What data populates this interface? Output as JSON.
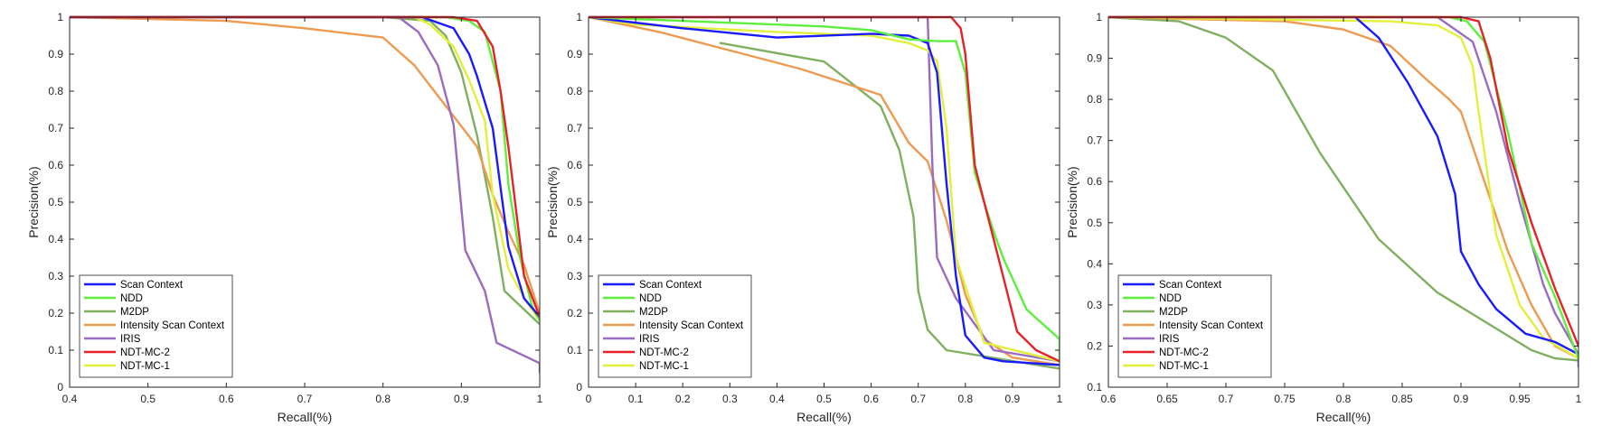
{
  "colors": {
    "Scan Context": "#1a1aff",
    "NDD": "#5cf03c",
    "M2DP": "#7fb060",
    "Intensity Scan Context": "#ee9a50",
    "IRIS": "#9b6bc2",
    "NDT-MC-2": "#e8202a",
    "NDT-MC-1": "#e2ef3c"
  },
  "chart_data": [
    {
      "type": "line",
      "xlabel": "Recall(%)",
      "ylabel": "Precision(%)",
      "xlim": [
        0.4,
        1
      ],
      "ylim": [
        0,
        1
      ],
      "xticks": [
        "0.4",
        "0.5",
        "0.6",
        "0.7",
        "0.8",
        "0.9",
        "1"
      ],
      "yticks": [
        "0",
        "0.1",
        "0.2",
        "0.3",
        "0.4",
        "0.5",
        "0.6",
        "0.7",
        "0.8",
        "0.9",
        "1"
      ],
      "legend": [
        "Scan Context",
        "NDD",
        "M2DP",
        "Intensity Scan Context",
        "IRIS",
        "NDT-MC-2",
        "NDT-MC-1"
      ],
      "series": [
        {
          "name": "M2DP",
          "x": [
            0.4,
            0.8,
            0.86,
            0.88,
            0.9,
            0.92,
            0.94,
            0.955,
            0.975,
            1
          ],
          "y": [
            1,
            1,
            0.99,
            0.95,
            0.85,
            0.68,
            0.46,
            0.26,
            0.22,
            0.17
          ]
        },
        {
          "name": "Intensity Scan Context",
          "x": [
            0.4,
            0.6,
            0.7,
            0.8,
            0.84,
            0.88,
            0.92,
            0.94,
            0.96,
            0.98,
            1
          ],
          "y": [
            1,
            0.99,
            0.97,
            0.945,
            0.87,
            0.76,
            0.65,
            0.52,
            0.42,
            0.33,
            0.2
          ]
        },
        {
          "name": "IRIS",
          "x": [
            0.4,
            0.82,
            0.845,
            0.87,
            0.89,
            0.905,
            0.93,
            0.945,
            1,
            1
          ],
          "y": [
            1,
            1,
            0.96,
            0.87,
            0.71,
            0.37,
            0.26,
            0.12,
            0.065,
            0.04
          ]
        },
        {
          "name": "NDT-MC-1",
          "x": [
            0.4,
            0.84,
            0.86,
            0.89,
            0.91,
            0.93,
            0.94,
            0.96,
            0.98,
            1
          ],
          "y": [
            1,
            1,
            0.98,
            0.92,
            0.83,
            0.72,
            0.52,
            0.32,
            0.24,
            0.18
          ]
        },
        {
          "name": "NDD",
          "x": [
            0.4,
            0.88,
            0.91,
            0.93,
            0.95,
            0.96,
            0.975,
            0.99,
            1
          ],
          "y": [
            1,
            1,
            0.99,
            0.96,
            0.8,
            0.55,
            0.35,
            0.22,
            0.18
          ]
        },
        {
          "name": "Scan Context",
          "x": [
            0.4,
            0.85,
            0.89,
            0.91,
            0.92,
            0.94,
            0.96,
            0.98,
            1
          ],
          "y": [
            1,
            1,
            0.97,
            0.9,
            0.84,
            0.7,
            0.38,
            0.24,
            0.19
          ]
        },
        {
          "name": "NDT-MC-2",
          "x": [
            0.4,
            0.89,
            0.92,
            0.94,
            0.95,
            0.96,
            0.98,
            1
          ],
          "y": [
            1,
            1,
            0.99,
            0.92,
            0.8,
            0.65,
            0.3,
            0.19
          ]
        }
      ]
    },
    {
      "type": "line",
      "xlabel": "Recall(%)",
      "ylabel": "Precision(%)",
      "xlim": [
        0,
        1
      ],
      "ylim": [
        0,
        1
      ],
      "xticks": [
        "0",
        "0.1",
        "0.2",
        "0.3",
        "0.4",
        "0.5",
        "0.6",
        "0.7",
        "0.8",
        "0.9",
        "1"
      ],
      "yticks": [
        "0",
        "0.1",
        "0.2",
        "0.3",
        "0.4",
        "0.5",
        "0.6",
        "0.7",
        "0.8",
        "0.9",
        "1"
      ],
      "legend": [
        "Scan Context",
        "NDD",
        "M2DP",
        "Intensity Scan Context",
        "IRIS",
        "NDT-MC-2",
        "NDT-MC-1"
      ],
      "series": [
        {
          "name": "M2DP",
          "x": [
            0.28,
            0.5,
            0.62,
            0.66,
            0.69,
            0.7,
            0.72,
            0.76,
            1
          ],
          "y": [
            0.93,
            0.88,
            0.76,
            0.64,
            0.46,
            0.26,
            0.155,
            0.1,
            0.05
          ]
        },
        {
          "name": "Intensity Scan Context",
          "x": [
            0,
            0.15,
            0.3,
            0.45,
            0.62,
            0.68,
            0.72,
            0.76,
            0.8,
            0.84,
            0.9,
            1
          ],
          "y": [
            1,
            0.96,
            0.91,
            0.86,
            0.79,
            0.66,
            0.61,
            0.45,
            0.25,
            0.13,
            0.08,
            0.06
          ]
        },
        {
          "name": "IRIS",
          "x": [
            0,
            0.72,
            0.73,
            0.74,
            0.78,
            0.86,
            1
          ],
          "y": [
            1,
            1,
            0.6,
            0.35,
            0.24,
            0.1,
            0.07
          ]
        },
        {
          "name": "NDT-MC-1",
          "x": [
            0,
            0.1,
            0.4,
            0.6,
            0.68,
            0.72,
            0.74,
            0.76,
            0.78,
            0.84,
            1
          ],
          "y": [
            1,
            0.98,
            0.96,
            0.95,
            0.93,
            0.91,
            0.88,
            0.7,
            0.35,
            0.12,
            0.07
          ]
        },
        {
          "name": "Scan Context",
          "x": [
            0,
            0.2,
            0.4,
            0.6,
            0.68,
            0.72,
            0.74,
            0.76,
            0.78,
            0.8,
            0.84,
            0.88,
            1
          ],
          "y": [
            1,
            0.97,
            0.945,
            0.955,
            0.95,
            0.93,
            0.85,
            0.55,
            0.3,
            0.14,
            0.08,
            0.07,
            0.06
          ]
        },
        {
          "name": "NDD",
          "x": [
            0,
            0.5,
            0.6,
            0.68,
            0.74,
            0.78,
            0.8,
            0.82,
            0.84,
            0.86,
            0.88,
            0.93,
            1,
            1
          ],
          "y": [
            1,
            0.975,
            0.965,
            0.94,
            0.935,
            0.935,
            0.85,
            0.58,
            0.5,
            0.42,
            0.35,
            0.21,
            0.13,
            0.07
          ]
        },
        {
          "name": "NDT-MC-2",
          "x": [
            0,
            0.77,
            0.79,
            0.8,
            0.82,
            0.84,
            0.86,
            0.88,
            0.91,
            0.95,
            1
          ],
          "y": [
            1,
            1,
            0.97,
            0.9,
            0.6,
            0.5,
            0.4,
            0.3,
            0.15,
            0.1,
            0.07
          ]
        }
      ]
    },
    {
      "type": "line",
      "xlabel": "Recall(%)",
      "ylabel": "Precision(%)",
      "xlim": [
        0.6,
        1
      ],
      "ylim": [
        0.1,
        1
      ],
      "xticks": [
        "0.6",
        "0.65",
        "0.7",
        "0.75",
        "0.8",
        "0.85",
        "0.9",
        "0.95",
        "1"
      ],
      "yticks": [
        "0.1",
        "0.2",
        "0.3",
        "0.4",
        "0.5",
        "0.6",
        "0.7",
        "0.8",
        "0.9",
        "1"
      ],
      "legend": [
        "Scan Context",
        "NDD",
        "M2DP",
        "Intensity Scan Context",
        "IRIS",
        "NDT-MC-2",
        "NDT-MC-1"
      ],
      "series": [
        {
          "name": "M2DP",
          "x": [
            0.6,
            0.66,
            0.7,
            0.74,
            0.78,
            0.83,
            0.88,
            0.92,
            0.96,
            0.98,
            1
          ],
          "y": [
            1,
            0.99,
            0.95,
            0.87,
            0.67,
            0.46,
            0.33,
            0.26,
            0.19,
            0.17,
            0.165
          ]
        },
        {
          "name": "Intensity Scan Context",
          "x": [
            0.6,
            0.75,
            0.8,
            0.84,
            0.87,
            0.89,
            0.9,
            0.92,
            0.94,
            0.96,
            0.98,
            1
          ],
          "y": [
            1,
            0.99,
            0.97,
            0.93,
            0.85,
            0.8,
            0.77,
            0.6,
            0.43,
            0.3,
            0.2,
            0.17
          ]
        },
        {
          "name": "IRIS",
          "x": [
            0.6,
            0.88,
            0.91,
            0.93,
            0.95,
            0.97,
            0.98,
            1,
            1
          ],
          "y": [
            1,
            1,
            0.94,
            0.77,
            0.55,
            0.35,
            0.28,
            0.18,
            0.15
          ]
        },
        {
          "name": "NDT-MC-1",
          "x": [
            0.6,
            0.84,
            0.88,
            0.9,
            0.91,
            0.915,
            0.93,
            0.95,
            0.97,
            1
          ],
          "y": [
            1,
            0.99,
            0.98,
            0.95,
            0.88,
            0.77,
            0.47,
            0.3,
            0.22,
            0.17
          ]
        },
        {
          "name": "Scan Context",
          "x": [
            0.6,
            0.81,
            0.83,
            0.855,
            0.88,
            0.895,
            0.9,
            0.915,
            0.93,
            0.955,
            0.98,
            1
          ],
          "y": [
            1,
            1,
            0.95,
            0.84,
            0.71,
            0.57,
            0.43,
            0.35,
            0.29,
            0.23,
            0.21,
            0.18
          ]
        },
        {
          "name": "NDD",
          "x": [
            0.6,
            0.89,
            0.905,
            0.92,
            0.94,
            0.96,
            0.98,
            1
          ],
          "y": [
            1,
            1,
            0.99,
            0.94,
            0.72,
            0.45,
            0.32,
            0.17
          ]
        },
        {
          "name": "NDT-MC-2",
          "x": [
            0.6,
            0.9,
            0.915,
            0.925,
            0.94,
            0.96,
            0.98,
            1
          ],
          "y": [
            1,
            1,
            0.99,
            0.9,
            0.68,
            0.5,
            0.34,
            0.2
          ]
        }
      ]
    }
  ]
}
